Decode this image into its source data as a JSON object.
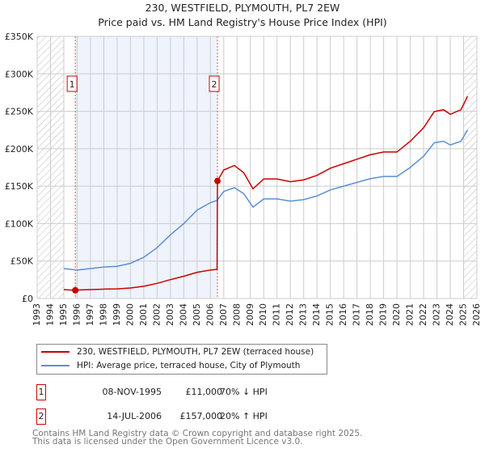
{
  "chart_data": {
    "type": "line",
    "title": "230, WESTFIELD, PLYMOUTH, PL7 2EW",
    "subtitle": "Price paid vs. HM Land Registry's House Price Index (HPI)",
    "xlim": [
      1993,
      2026
    ],
    "ylim": [
      0,
      350000
    ],
    "x_ticks": [
      "1993",
      "1994",
      "1995",
      "1996",
      "1997",
      "1998",
      "1999",
      "2000",
      "2001",
      "2002",
      "2003",
      "2004",
      "2005",
      "2006",
      "2007",
      "2008",
      "2009",
      "2010",
      "2011",
      "2012",
      "2013",
      "2014",
      "2015",
      "2016",
      "2017",
      "2018",
      "2019",
      "2020",
      "2021",
      "2022",
      "2023",
      "2024",
      "2025",
      "2026"
    ],
    "y_ticks": [
      {
        "v": 0,
        "label": "£0"
      },
      {
        "v": 50000,
        "label": "£50K"
      },
      {
        "v": 100000,
        "label": "£100K"
      },
      {
        "v": 150000,
        "label": "£150K"
      },
      {
        "v": 200000,
        "label": "£200K"
      },
      {
        "v": 250000,
        "label": "£250K"
      },
      {
        "v": 300000,
        "label": "£300K"
      },
      {
        "v": 350000,
        "label": "£350K"
      }
    ],
    "grid": true,
    "hatched_ranges": [
      [
        1993,
        1995
      ],
      [
        2025,
        2026
      ]
    ],
    "shaded_range": [
      1995.86,
      2006.53
    ],
    "series": [
      {
        "name": "230, WESTFIELD, PLYMOUTH, PL7 2EW (terraced house)",
        "color": "#cc0000",
        "x": [
          1995,
          1995.86,
          1996,
          1997,
          1998,
          1999,
          2000,
          2001,
          2002,
          2003,
          2004,
          2005,
          2006,
          2006.5,
          2006.53,
          2007,
          2007.8,
          2008.5,
          2009.2,
          2010,
          2011,
          2012,
          2013,
          2014,
          2015,
          2016,
          2017,
          2018,
          2019,
          2020,
          2021,
          2022,
          2022.8,
          2023.5,
          2024,
          2024.8,
          2025.3
        ],
        "y": [
          11900,
          11000,
          11300,
          11900,
          12500,
          12800,
          14000,
          16300,
          20200,
          25200,
          29700,
          35000,
          38000,
          38900,
          157000,
          171600,
          177600,
          168000,
          146400,
          159600,
          159600,
          156000,
          158400,
          164400,
          174000,
          180000,
          186000,
          192000,
          195600,
          195600,
          210000,
          228000,
          249600,
          252000,
          246000,
          252000,
          270000
        ]
      },
      {
        "name": "HPI: Average price, terraced house, City of Plymouth",
        "color": "#5b8fd4",
        "x": [
          1995,
          1996,
          1997,
          1998,
          1999,
          2000,
          2001,
          2002,
          2003,
          2004,
          2005,
          2006,
          2006.5,
          2007,
          2007.8,
          2008.5,
          2009.2,
          2010,
          2011,
          2012,
          2013,
          2014,
          2015,
          2016,
          2017,
          2018,
          2019,
          2020,
          2021,
          2022,
          2022.8,
          2023.5,
          2024,
          2024.8,
          2025.3
        ],
        "y": [
          40000,
          38000,
          40000,
          42000,
          43000,
          47000,
          55000,
          68000,
          85000,
          100000,
          118000,
          128000,
          131000,
          143000,
          148000,
          140000,
          122000,
          133000,
          133000,
          130000,
          132000,
          137000,
          145000,
          150000,
          155000,
          160000,
          163000,
          163000,
          175000,
          190000,
          208000,
          210000,
          205000,
          210000,
          225000
        ]
      }
    ],
    "sales": [
      {
        "id": "1",
        "x": 1995.86,
        "y": 11000,
        "date": "08-NOV-1995",
        "price": "£11,000",
        "hpi": "70% ↓ HPI"
      },
      {
        "id": "2",
        "x": 2006.53,
        "y": 157000,
        "date": "14-JUL-2006",
        "price": "£157,000",
        "hpi": "20% ↑ HPI"
      }
    ],
    "legend": "below"
  },
  "footer": {
    "line1": "Contains HM Land Registry data © Crown copyright and database right 2025.",
    "line2": "This data is licensed under the Open Government Licence v3.0."
  }
}
